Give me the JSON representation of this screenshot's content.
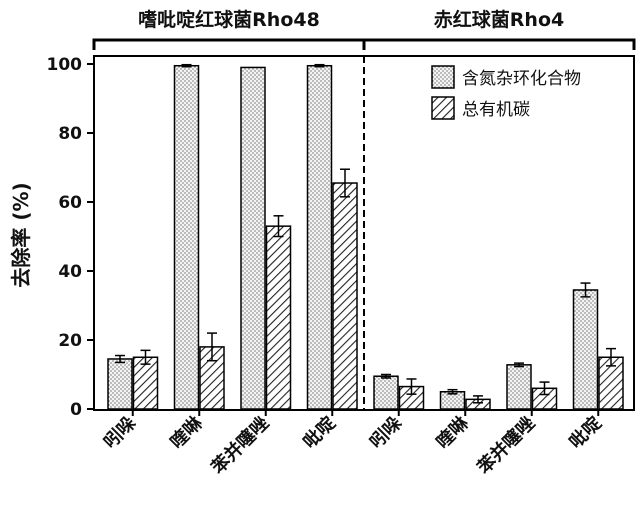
{
  "chart_data": {
    "type": "bar",
    "ylabel": "去除率 (%)",
    "ylim": [
      0,
      100
    ],
    "yticks": [
      0,
      20,
      40,
      60,
      80,
      100
    ],
    "legend_position": "top-right",
    "grid": false,
    "groups": [
      {
        "name": "嗜吡啶红球菌Rho48",
        "categories": [
          "吲哚",
          "喹啉",
          "苯并噻唑",
          "吡啶"
        ]
      },
      {
        "name": "赤红球菌Rho4",
        "categories": [
          "吲哚",
          "喹啉",
          "苯并噻唑",
          "吡啶"
        ]
      }
    ],
    "series": [
      {
        "name": "含氮杂环化合物",
        "pattern": "dots",
        "values": [
          14.5,
          99.5,
          99.0,
          99.5,
          9.5,
          5.0,
          12.8,
          34.5
        ],
        "errors": [
          1.0,
          0.3,
          0.0,
          0.3,
          0.5,
          0.6,
          0.5,
          2.0
        ]
      },
      {
        "name": "总有机碳",
        "pattern": "hatch",
        "values": [
          15.0,
          18.0,
          53.0,
          65.5,
          6.5,
          2.8,
          6.0,
          15.0
        ],
        "errors": [
          2.0,
          4.0,
          3.0,
          4.0,
          2.2,
          1.0,
          1.8,
          2.5
        ]
      }
    ]
  }
}
